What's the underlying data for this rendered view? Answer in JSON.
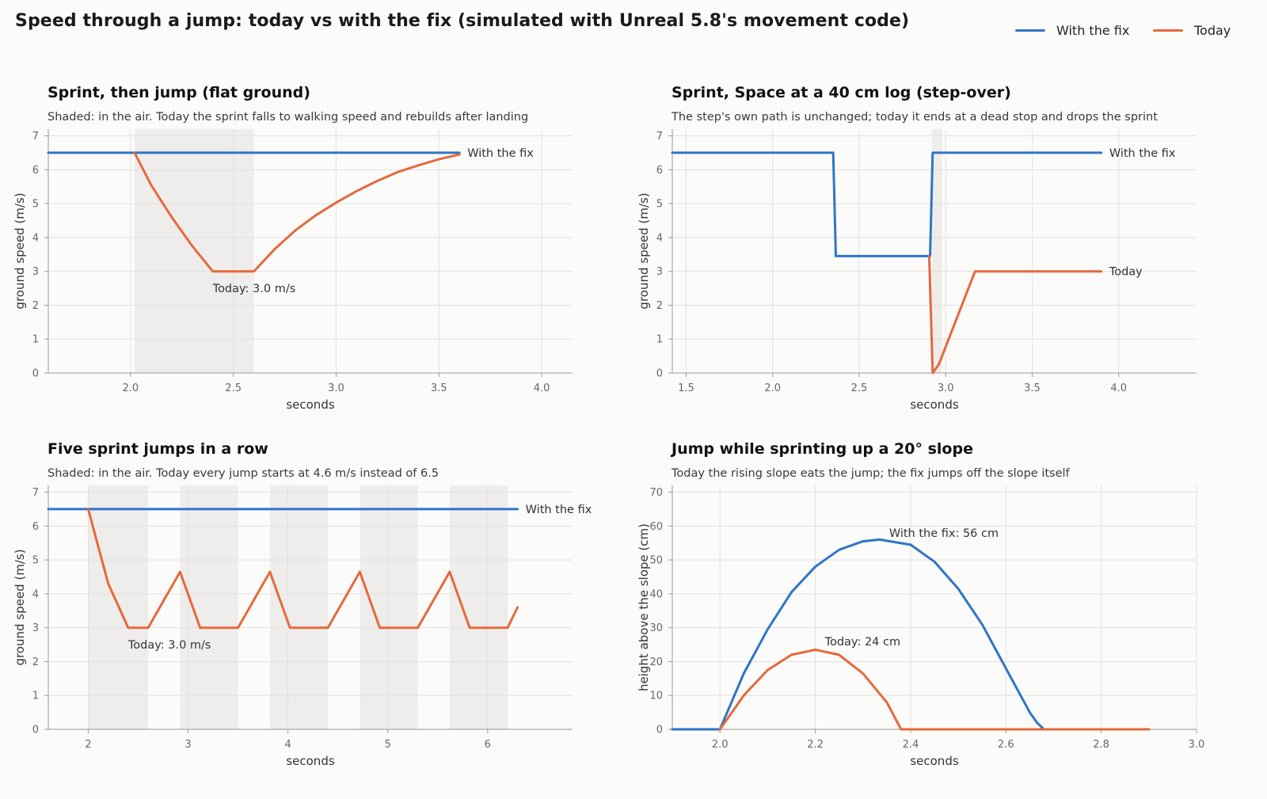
{
  "title": "Speed through a jump: today vs with the fix (simulated with Unreal 5.8's movement code)",
  "legend": [
    {
      "name": "With the fix",
      "color": "#2f75c7"
    },
    {
      "name": "Today",
      "color": "#e5693b"
    }
  ],
  "colors": {
    "fix": "#2f75c7",
    "today": "#e5693b",
    "shade": "#efedeb",
    "grid": "#e3e1dd",
    "axis": "#9a9a9a"
  },
  "chart_data": [
    {
      "type": "line",
      "title": "Sprint, then jump (flat ground)",
      "subtitle": "Shaded: in the air. Today the sprint falls to walking speed and rebuilds after landing",
      "xlabel": "seconds",
      "ylabel": "ground speed (m/s)",
      "xlim": [
        1.6,
        4.15
      ],
      "ylim": [
        0,
        7.2
      ],
      "xticks": [
        2.0,
        2.5,
        3.0,
        3.5,
        4.0
      ],
      "xtick_labels": [
        "2.0",
        "2.5",
        "3.0",
        "3.5",
        "4.0"
      ],
      "yticks": [
        0,
        1,
        2,
        3,
        4,
        5,
        6,
        7
      ],
      "ytick_labels": [
        "0",
        "1",
        "2",
        "3",
        "4",
        "5",
        "6",
        "7"
      ],
      "shaded": [
        [
          2.02,
          2.6
        ]
      ],
      "series": [
        {
          "name": "With the fix",
          "color_key": "fix",
          "end_label": "With the fix",
          "x": [
            1.6,
            3.6
          ],
          "y": [
            6.5,
            6.5
          ]
        },
        {
          "name": "Today",
          "color_key": "today",
          "end_label": "",
          "x": [
            2.02,
            2.1,
            2.2,
            2.3,
            2.4,
            2.6,
            2.7,
            2.8,
            2.9,
            3.0,
            3.1,
            3.2,
            3.3,
            3.4,
            3.5,
            3.6
          ],
          "y": [
            6.5,
            5.55,
            4.6,
            3.75,
            3.0,
            3.0,
            3.65,
            4.2,
            4.65,
            5.03,
            5.37,
            5.67,
            5.93,
            6.13,
            6.31,
            6.45
          ]
        }
      ],
      "annotations": [
        {
          "text": "Today: 3.0 m/s",
          "x": 2.4,
          "y": 2.5
        }
      ]
    },
    {
      "type": "line",
      "title": "Sprint, Space at a 40 cm log (step-over)",
      "subtitle": "The step's own path is unchanged; today it ends at a dead stop and drops the sprint",
      "xlabel": "seconds",
      "ylabel": "ground speed (m/s)",
      "xlim": [
        1.42,
        4.45
      ],
      "ylim": [
        0,
        7.2
      ],
      "xticks": [
        1.5,
        2.0,
        2.5,
        3.0,
        3.5,
        4.0
      ],
      "xtick_labels": [
        "1.5",
        "2.0",
        "2.5",
        "3.0",
        "3.5",
        "4.0"
      ],
      "yticks": [
        0,
        1,
        2,
        3,
        4,
        5,
        6,
        7
      ],
      "ytick_labels": [
        "0",
        "1",
        "2",
        "3",
        "4",
        "5",
        "6",
        "7"
      ],
      "shaded": [
        [
          2.92,
          2.98
        ]
      ],
      "series": [
        {
          "name": "With the fix",
          "color_key": "fix",
          "end_label": "With the fix",
          "x": [
            1.42,
            2.35,
            2.365,
            2.91,
            2.925,
            3.9
          ],
          "y": [
            6.5,
            6.5,
            3.45,
            3.45,
            6.5,
            6.5
          ]
        },
        {
          "name": "Today",
          "color_key": "today",
          "end_label": "Today",
          "x": [
            2.905,
            2.925,
            2.96,
            3.17,
            3.9
          ],
          "y": [
            3.45,
            0.0,
            0.25,
            3.0,
            3.0
          ]
        }
      ],
      "annotations": []
    },
    {
      "type": "line",
      "title": "Five sprint jumps in a row",
      "subtitle": "Shaded: in the air. Today every jump starts at 4.6 m/s instead of 6.5",
      "xlabel": "seconds",
      "ylabel": "ground speed (m/s)",
      "xlim": [
        1.6,
        6.85
      ],
      "ylim": [
        0,
        7.2
      ],
      "xticks": [
        2,
        3,
        4,
        5,
        6
      ],
      "xtick_labels": [
        "2",
        "3",
        "4",
        "5",
        "6"
      ],
      "yticks": [
        0,
        1,
        2,
        3,
        4,
        5,
        6,
        7
      ],
      "ytick_labels": [
        "0",
        "1",
        "2",
        "3",
        "4",
        "5",
        "6",
        "7"
      ],
      "shaded": [
        [
          2.0,
          2.6
        ],
        [
          2.92,
          3.5
        ],
        [
          3.82,
          4.4
        ],
        [
          4.72,
          5.3
        ],
        [
          5.62,
          6.2
        ]
      ],
      "series": [
        {
          "name": "With the fix",
          "color_key": "fix",
          "end_label": "With the fix",
          "x": [
            1.6,
            6.3
          ],
          "y": [
            6.5,
            6.5
          ]
        },
        {
          "name": "Today",
          "color_key": "today",
          "end_label": "",
          "x": [
            2.0,
            2.1,
            2.2,
            2.4,
            2.6,
            2.92,
            3.12,
            3.5,
            3.82,
            4.02,
            4.4,
            4.72,
            4.92,
            5.3,
            5.62,
            5.82,
            6.2,
            6.3
          ],
          "y": [
            6.5,
            5.4,
            4.3,
            3.0,
            3.0,
            4.65,
            3.0,
            3.0,
            4.65,
            3.0,
            3.0,
            4.65,
            3.0,
            3.0,
            4.65,
            3.0,
            3.0,
            3.6
          ]
        }
      ],
      "annotations": [
        {
          "text": "Today: 3.0 m/s",
          "x": 2.4,
          "y": 2.5
        }
      ]
    },
    {
      "type": "line",
      "title": "Jump while sprinting up a 20° slope",
      "subtitle": "Today the rising slope eats the jump; the fix jumps off the slope itself",
      "xlabel": "seconds",
      "ylabel": "height above the slope (cm)",
      "xlim": [
        1.9,
        3.0
      ],
      "ylim": [
        0,
        72
      ],
      "xticks": [
        2.0,
        2.2,
        2.4,
        2.6,
        2.8,
        3.0
      ],
      "xtick_labels": [
        "2.0",
        "2.2",
        "2.4",
        "2.6",
        "2.8",
        "3.0"
      ],
      "yticks": [
        0,
        10,
        20,
        30,
        40,
        50,
        60,
        70
      ],
      "ytick_labels": [
        "0",
        "10",
        "20",
        "30",
        "40",
        "50",
        "60",
        "70"
      ],
      "shaded": [],
      "series": [
        {
          "name": "With the fix",
          "color_key": "fix",
          "end_label": "",
          "x": [
            1.9,
            2.0,
            2.05,
            2.1,
            2.15,
            2.2,
            2.25,
            2.3,
            2.335,
            2.4,
            2.45,
            2.5,
            2.55,
            2.6,
            2.65,
            2.665,
            2.68,
            2.9
          ],
          "y": [
            0,
            0,
            16.5,
            29.5,
            40.5,
            48,
            53,
            55.5,
            56,
            54.5,
            49.5,
            41.5,
            31,
            18,
            5,
            2,
            0,
            0
          ]
        },
        {
          "name": "Today",
          "color_key": "today",
          "end_label": "",
          "x": [
            2.0,
            2.05,
            2.1,
            2.15,
            2.2,
            2.25,
            2.3,
            2.35,
            2.38,
            2.9
          ],
          "y": [
            0,
            10,
            17.5,
            22,
            23.5,
            22,
            16.5,
            8,
            0,
            0
          ]
        }
      ],
      "annotations": [
        {
          "text": "With the fix: 56 cm",
          "x": 2.355,
          "y": 58
        },
        {
          "text": "Today: 24 cm",
          "x": 2.22,
          "y": 26
        }
      ]
    }
  ]
}
